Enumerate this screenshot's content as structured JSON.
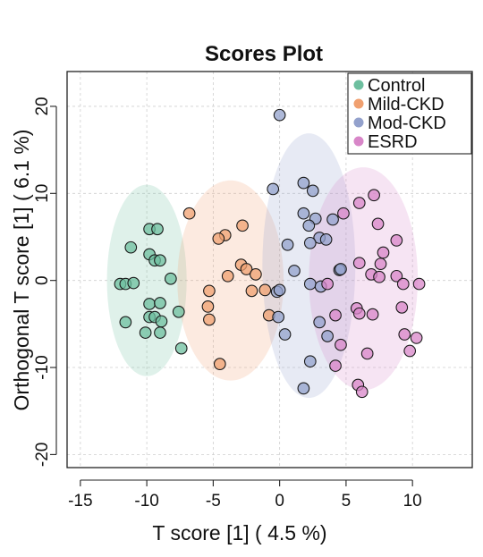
{
  "chart_data": {
    "type": "scatter",
    "title": "Scores Plot",
    "xlabel": "T score [1] ( 4.5 %)",
    "ylabel": "Orthogonal T score [1] ( 6.1 %)",
    "xlim": [
      -16,
      14.5
    ],
    "ylim": [
      -21.5,
      24
    ],
    "x_ticks": [
      -15,
      -10,
      -5,
      0,
      5,
      10
    ],
    "y_ticks": [
      -20,
      -10,
      0,
      10,
      20
    ],
    "grid": true,
    "legend_position": "top-right",
    "series": [
      {
        "name": "Control",
        "color": "#6dbf9f",
        "ellipse": {
          "cx": -10,
          "cy": 0,
          "rx": 3.0,
          "ry": 11
        },
        "points": [
          [
            -9.8,
            5.9
          ],
          [
            -9.2,
            5.9
          ],
          [
            -11.2,
            3.8
          ],
          [
            -9.8,
            3.0
          ],
          [
            -9.4,
            2.3
          ],
          [
            -9.0,
            2.3
          ],
          [
            -8.2,
            0.2
          ],
          [
            -12.0,
            -0.4
          ],
          [
            -11.6,
            -0.4
          ],
          [
            -11.0,
            -0.3
          ],
          [
            -9.8,
            -2.7
          ],
          [
            -9.0,
            -2.6
          ],
          [
            -7.6,
            -3.6
          ],
          [
            -9.8,
            -4.2
          ],
          [
            -9.4,
            -4.2
          ],
          [
            -8.9,
            -4.7
          ],
          [
            -11.6,
            -4.8
          ],
          [
            -10.1,
            -6.0
          ],
          [
            -9.0,
            -6.0
          ],
          [
            -7.4,
            -7.8
          ]
        ]
      },
      {
        "name": "Mild-CKD",
        "color": "#f0a070",
        "ellipse": {
          "cx": -3.7,
          "cy": 0,
          "rx": 4.0,
          "ry": 11.5
        },
        "points": [
          [
            -6.8,
            7.7
          ],
          [
            -2.8,
            6.3
          ],
          [
            -4.1,
            5.2
          ],
          [
            -4.6,
            4.8
          ],
          [
            -2.9,
            1.8
          ],
          [
            -2.5,
            1.3
          ],
          [
            -1.8,
            0.7
          ],
          [
            -3.9,
            0.5
          ],
          [
            -2.1,
            -1.2
          ],
          [
            -5.3,
            -1.2
          ],
          [
            -1.1,
            -1.1
          ],
          [
            -5.4,
            -3.0
          ],
          [
            -0.8,
            -4.0
          ],
          [
            -5.3,
            -4.5
          ],
          [
            -4.5,
            -9.6
          ]
        ]
      },
      {
        "name": "Mod-CKD",
        "color": "#93a1cc",
        "ellipse": {
          "cx": 2.2,
          "cy": 1.7,
          "rx": 3.5,
          "ry": 15.2
        },
        "points": [
          [
            0.0,
            19.0
          ],
          [
            -0.5,
            10.5
          ],
          [
            1.8,
            11.2
          ],
          [
            2.5,
            10.3
          ],
          [
            1.8,
            7.7
          ],
          [
            2.7,
            7.1
          ],
          [
            4.0,
            7.0
          ],
          [
            2.2,
            6.3
          ],
          [
            3.0,
            4.9
          ],
          [
            3.5,
            4.7
          ],
          [
            2.3,
            4.3
          ],
          [
            0.6,
            4.1
          ],
          [
            1.1,
            1.1
          ],
          [
            4.5,
            1.2
          ],
          [
            4.6,
            1.3
          ],
          [
            2.3,
            -0.4
          ],
          [
            3.1,
            -0.7
          ],
          [
            -0.2,
            -1.3
          ],
          [
            0.0,
            -1.1
          ],
          [
            -0.1,
            -4.2
          ],
          [
            3.0,
            -4.8
          ],
          [
            0.4,
            -6.2
          ],
          [
            3.6,
            -6.4
          ],
          [
            2.3,
            -9.3
          ],
          [
            1.8,
            -12.4
          ]
        ]
      },
      {
        "name": "ESRD",
        "color": "#d886c8",
        "ellipse": {
          "cx": 6.3,
          "cy": 0.2,
          "rx": 4.1,
          "ry": 12.8
        },
        "points": [
          [
            7.1,
            9.8
          ],
          [
            6.0,
            8.9
          ],
          [
            4.8,
            7.7
          ],
          [
            7.4,
            6.5
          ],
          [
            8.8,
            4.6
          ],
          [
            7.8,
            3.2
          ],
          [
            7.6,
            1.9
          ],
          [
            6.0,
            2.0
          ],
          [
            6.9,
            0.7
          ],
          [
            7.5,
            0.4
          ],
          [
            8.8,
            0.5
          ],
          [
            9.3,
            -0.4
          ],
          [
            10.5,
            -0.4
          ],
          [
            3.6,
            -0.4
          ],
          [
            5.8,
            -3.2
          ],
          [
            6.0,
            -3.8
          ],
          [
            7.0,
            -3.9
          ],
          [
            9.2,
            -3.1
          ],
          [
            4.2,
            -4.0
          ],
          [
            9.4,
            -6.2
          ],
          [
            10.3,
            -6.6
          ],
          [
            4.6,
            -7.4
          ],
          [
            9.8,
            -8.1
          ],
          [
            4.2,
            -9.8
          ],
          [
            6.6,
            -8.4
          ],
          [
            5.9,
            -12.0
          ],
          [
            6.2,
            -12.8
          ]
        ]
      }
    ]
  }
}
